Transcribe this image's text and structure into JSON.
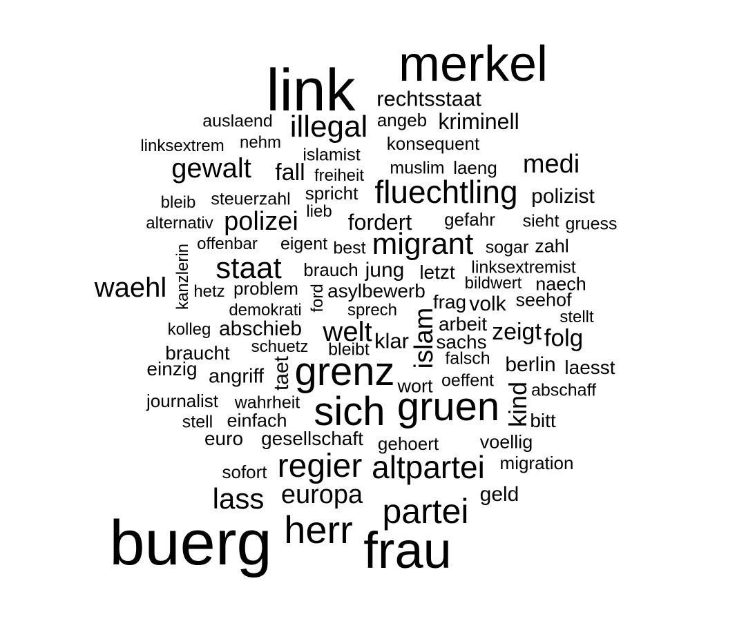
{
  "word_cloud": {
    "words": [
      "merkel",
      "link",
      "rechtsstaat",
      "auslaend",
      "illegal",
      "angeb",
      "kriminell",
      "linksextrem",
      "nehm",
      "konsequent",
      "islamist",
      "gewalt",
      "fall",
      "freiheit",
      "muslim",
      "laeng",
      "medi",
      "fluechtling",
      "bleib",
      "steuerzahl",
      "spricht",
      "polizist",
      "lieb",
      "alternativ",
      "polizei",
      "fordert",
      "gefahr",
      "sieht",
      "gruess",
      "kanzlerin",
      "offenbar",
      "eigent",
      "best",
      "migrant",
      "sogar",
      "zahl",
      "staat",
      "brauch",
      "jung",
      "letzt",
      "linksextremist",
      "waehl",
      "hetz",
      "problem",
      "ford",
      "asylbewerb",
      "bildwert",
      "naech",
      "demokrati",
      "sprech",
      "frag",
      "volk",
      "seehof",
      "stellt",
      "kolleg",
      "abschieb",
      "welt",
      "islam",
      "arbeit",
      "zeigt",
      "braucht",
      "schuetz",
      "bleibt",
      "klar",
      "sachs",
      "folg",
      "einzig",
      "taet",
      "falsch",
      "berlin",
      "laesst",
      "angriff",
      "grenz",
      "wort",
      "oeffent",
      "kind",
      "abschaff",
      "journalist",
      "wahrheit",
      "sich",
      "gruen",
      "stell",
      "einfach",
      "bitt",
      "euro",
      "gesellschaft",
      "gehoert",
      "voellig",
      "sofort",
      "regier",
      "altpartei",
      "migration",
      "lass",
      "europa",
      "geld",
      "partei",
      "herr",
      "buerg",
      "frau"
    ]
  }
}
